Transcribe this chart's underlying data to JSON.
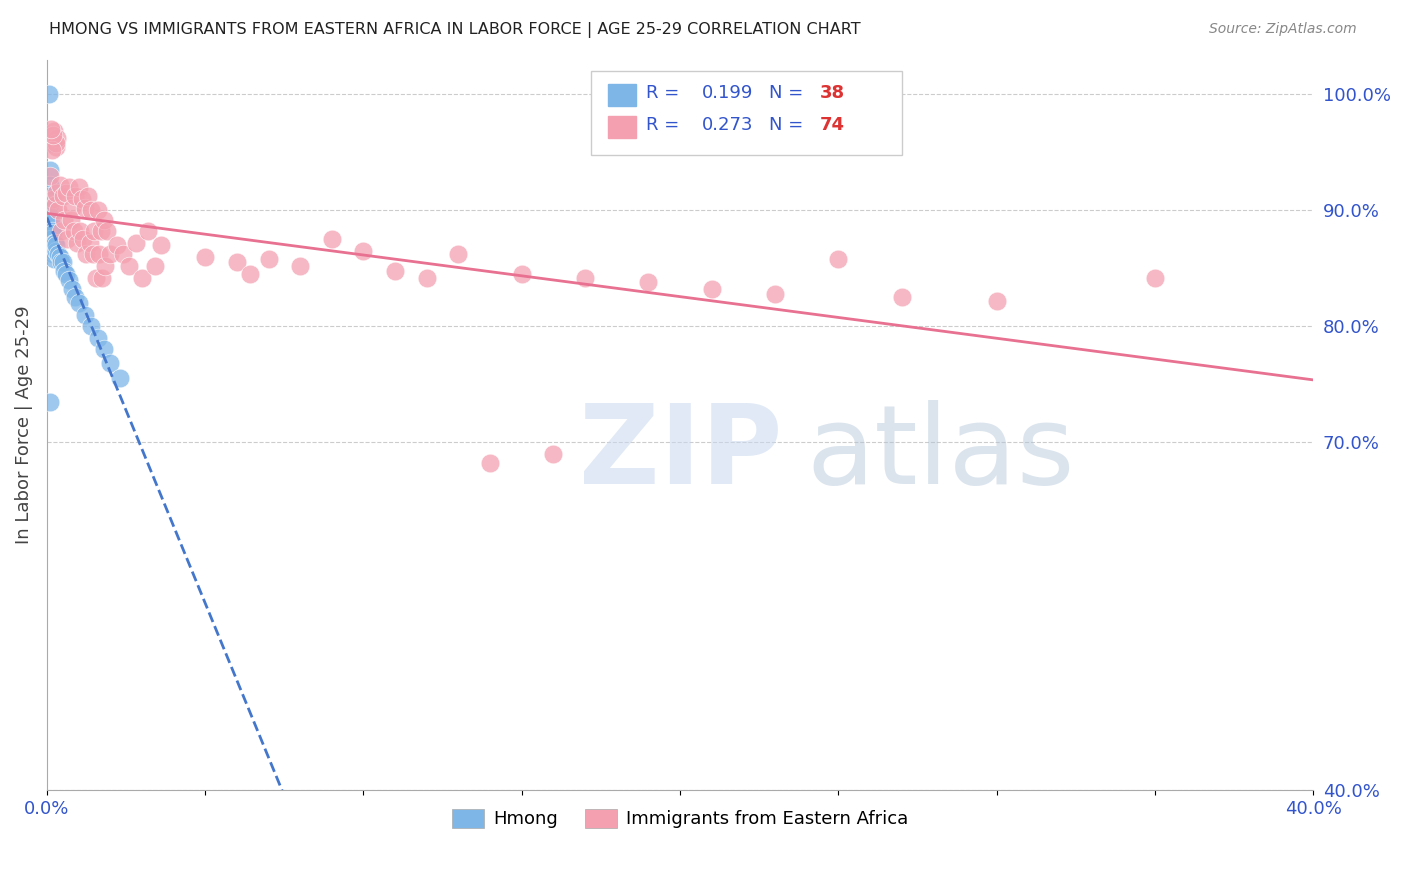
{
  "title": "HMONG VS IMMIGRANTS FROM EASTERN AFRICA IN LABOR FORCE | AGE 25-29 CORRELATION CHART",
  "source": "Source: ZipAtlas.com",
  "ylabel": "In Labor Force | Age 25-29",
  "xlim": [
    0.0,
    0.4
  ],
  "ylim": [
    0.4,
    1.03
  ],
  "hmong_R": 0.199,
  "hmong_N": 38,
  "eastern_africa_R": 0.273,
  "eastern_africa_N": 74,
  "hmong_color": "#7EB6E8",
  "eastern_africa_color": "#F4A0B0",
  "hmong_line_color": "#4477CC",
  "eastern_africa_line_color": "#E87090",
  "right_yticks": [
    0.4,
    0.7,
    0.8,
    0.9,
    1.0
  ],
  "right_yticklabels": [
    "40.0%",
    "70.0%",
    "80.0%",
    "90.0%",
    "100.0%"
  ],
  "hmong_x": [
    0.0008,
    0.0012,
    0.0009,
    0.001,
    0.0011,
    0.0009,
    0.001,
    0.0011,
    0.0012,
    0.0013,
    0.0015,
    0.0014,
    0.0016,
    0.0018,
    0.002,
    0.0022,
    0.0019,
    0.0021,
    0.0025,
    0.0028,
    0.003,
    0.0035,
    0.004,
    0.0045,
    0.005,
    0.0055,
    0.006,
    0.007,
    0.008,
    0.009,
    0.01,
    0.012,
    0.014,
    0.016,
    0.018,
    0.02,
    0.023,
    0.001
  ],
  "hmong_y": [
    1.0,
    0.958,
    0.935,
    0.922,
    0.912,
    0.905,
    0.895,
    0.888,
    0.88,
    0.89,
    0.882,
    0.875,
    0.868,
    0.862,
    0.88,
    0.872,
    0.865,
    0.858,
    0.872,
    0.865,
    0.87,
    0.862,
    0.86,
    0.855,
    0.855,
    0.848,
    0.845,
    0.84,
    0.832,
    0.825,
    0.82,
    0.81,
    0.8,
    0.79,
    0.78,
    0.768,
    0.755,
    0.735
  ],
  "eastern_africa_x": [
    0.001,
    0.002,
    0.0025,
    0.003,
    0.0035,
    0.004,
    0.0045,
    0.005,
    0.0055,
    0.006,
    0.0065,
    0.007,
    0.0075,
    0.008,
    0.0085,
    0.009,
    0.0095,
    0.01,
    0.0105,
    0.011,
    0.0115,
    0.012,
    0.0125,
    0.013,
    0.0135,
    0.014,
    0.0145,
    0.015,
    0.0155,
    0.016,
    0.0165,
    0.017,
    0.0175,
    0.018,
    0.0185,
    0.019,
    0.02,
    0.022,
    0.024,
    0.026,
    0.028,
    0.03,
    0.032,
    0.034,
    0.036,
    0.05,
    0.06,
    0.07,
    0.08,
    0.09,
    0.1,
    0.11,
    0.12,
    0.13,
    0.15,
    0.17,
    0.19,
    0.21,
    0.23,
    0.25,
    0.27,
    0.3,
    0.35,
    0.002,
    0.0022,
    0.003,
    0.0032,
    0.0028,
    0.0015,
    0.0018,
    0.0012,
    0.064,
    0.14,
    0.16
  ],
  "eastern_africa_y": [
    0.93,
    0.91,
    0.905,
    0.915,
    0.9,
    0.922,
    0.882,
    0.912,
    0.892,
    0.915,
    0.875,
    0.92,
    0.892,
    0.902,
    0.882,
    0.912,
    0.872,
    0.92,
    0.882,
    0.91,
    0.875,
    0.902,
    0.862,
    0.912,
    0.872,
    0.9,
    0.862,
    0.882,
    0.842,
    0.9,
    0.862,
    0.882,
    0.842,
    0.892,
    0.852,
    0.882,
    0.862,
    0.87,
    0.862,
    0.852,
    0.872,
    0.842,
    0.882,
    0.852,
    0.87,
    0.86,
    0.855,
    0.858,
    0.852,
    0.875,
    0.865,
    0.848,
    0.842,
    0.862,
    0.845,
    0.842,
    0.838,
    0.832,
    0.828,
    0.858,
    0.825,
    0.822,
    0.842,
    0.96,
    0.968,
    0.955,
    0.962,
    0.958,
    0.952,
    0.965,
    0.97,
    0.845,
    0.682,
    0.69
  ]
}
